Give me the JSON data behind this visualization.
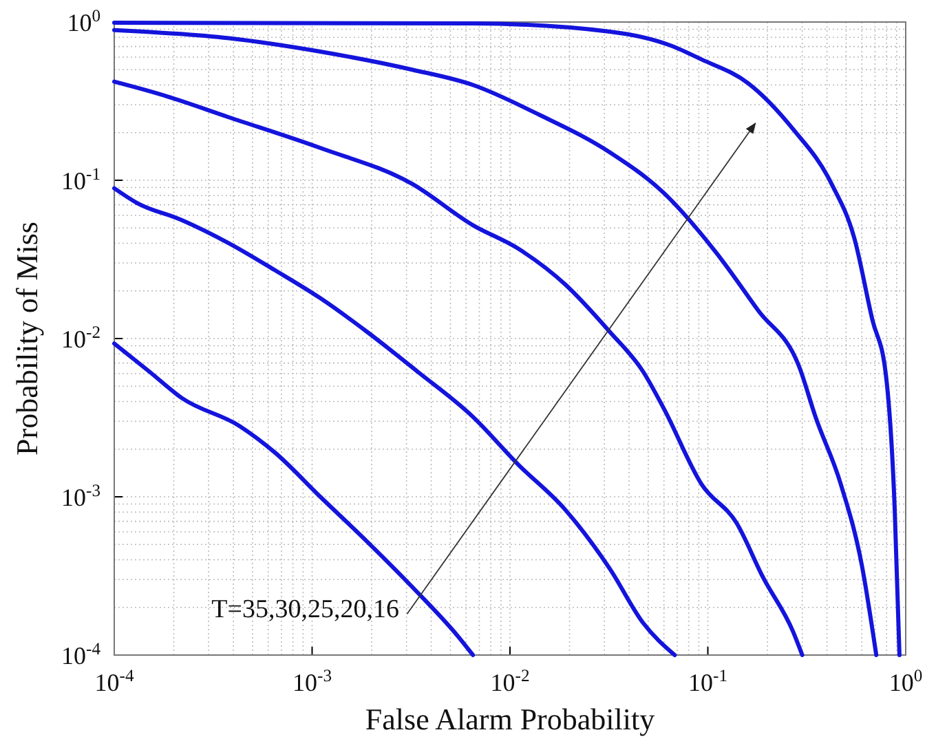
{
  "chart_data": {
    "type": "line",
    "xlabel": "False Alarm Probability",
    "ylabel": "Probability of Miss",
    "log": "xy",
    "grid": true,
    "marker": "none",
    "line_style": "solid",
    "xlim": [
      0.0001,
      1
    ],
    "ylim": [
      0.0001,
      1
    ],
    "xticks": [
      {
        "value": 0.0001,
        "label": "10$^{-4}$"
      },
      {
        "value": 0.001,
        "label": "10$^{-3}$"
      },
      {
        "value": 0.01,
        "label": "10$^{-2}$"
      },
      {
        "value": 0.1,
        "label": "10$^{-1}$"
      },
      {
        "value": 1,
        "label": "10$^{0}$"
      }
    ],
    "yticks": [
      {
        "value": 0.0001,
        "label": "10$^{-4}$"
      },
      {
        "value": 0.001,
        "label": "10$^{-3}$"
      },
      {
        "value": 0.01,
        "label": "10$^{-2}$"
      },
      {
        "value": 0.1,
        "label": "10$^{-1}$"
      },
      {
        "value": 1,
        "label": "10$^{0}$"
      }
    ],
    "annotations": [
      "T=35,30,25,20,16"
    ],
    "series": [
      {
        "color": "#1414dc",
        "x": [
          0.0001,
          0.00015,
          0.00022,
          0.00043,
          0.00065,
          0.0011,
          0.0019,
          0.0032,
          0.0055,
          0.0065
        ],
        "values": [
          0.0093,
          0.0062,
          0.0042,
          0.0028,
          0.0019,
          0.001,
          0.00052,
          0.00027,
          0.00013,
          0.0001
        ]
      },
      {
        "color": "#1414dc",
        "x": [
          0.0001,
          0.00013,
          0.00022,
          0.00038,
          0.00065,
          0.0011,
          0.0019,
          0.0034,
          0.0065,
          0.011,
          0.019,
          0.032,
          0.047,
          0.068
        ],
        "values": [
          0.089,
          0.072,
          0.056,
          0.04,
          0.027,
          0.018,
          0.011,
          0.0062,
          0.0032,
          0.0016,
          0.00083,
          0.00035,
          0.00016,
          0.0001
        ]
      },
      {
        "color": "#1414dc",
        "x": [
          0.0001,
          0.00017,
          0.00038,
          0.0011,
          0.0032,
          0.0065,
          0.011,
          0.019,
          0.032,
          0.047,
          0.06,
          0.093,
          0.14,
          0.19,
          0.27,
          0.3
        ],
        "values": [
          0.42,
          0.35,
          0.25,
          0.16,
          0.095,
          0.052,
          0.037,
          0.022,
          0.011,
          0.0062,
          0.0036,
          0.0012,
          0.00068,
          0.00031,
          0.00014,
          0.0001
        ]
      },
      {
        "color": "#1414dc",
        "x": [
          0.0001,
          0.00038,
          0.0011,
          0.0032,
          0.0065,
          0.014,
          0.032,
          0.06,
          0.11,
          0.18,
          0.29,
          0.35,
          0.47,
          0.6,
          0.71
        ],
        "values": [
          0.89,
          0.79,
          0.65,
          0.5,
          0.4,
          0.26,
          0.15,
          0.083,
          0.035,
          0.015,
          0.0066,
          0.0032,
          0.0012,
          0.00037,
          0.0001
        ]
      },
      {
        "color": "#1414dc",
        "x": [
          0.0001,
          0.0065,
          0.032,
          0.065,
          0.093,
          0.16,
          0.27,
          0.42,
          0.55,
          0.68,
          0.79,
          0.88,
          0.93
        ],
        "values": [
          0.99,
          0.98,
          0.87,
          0.71,
          0.58,
          0.41,
          0.21,
          0.096,
          0.043,
          0.013,
          0.0062,
          0.00083,
          0.0001
        ]
      }
    ]
  }
}
